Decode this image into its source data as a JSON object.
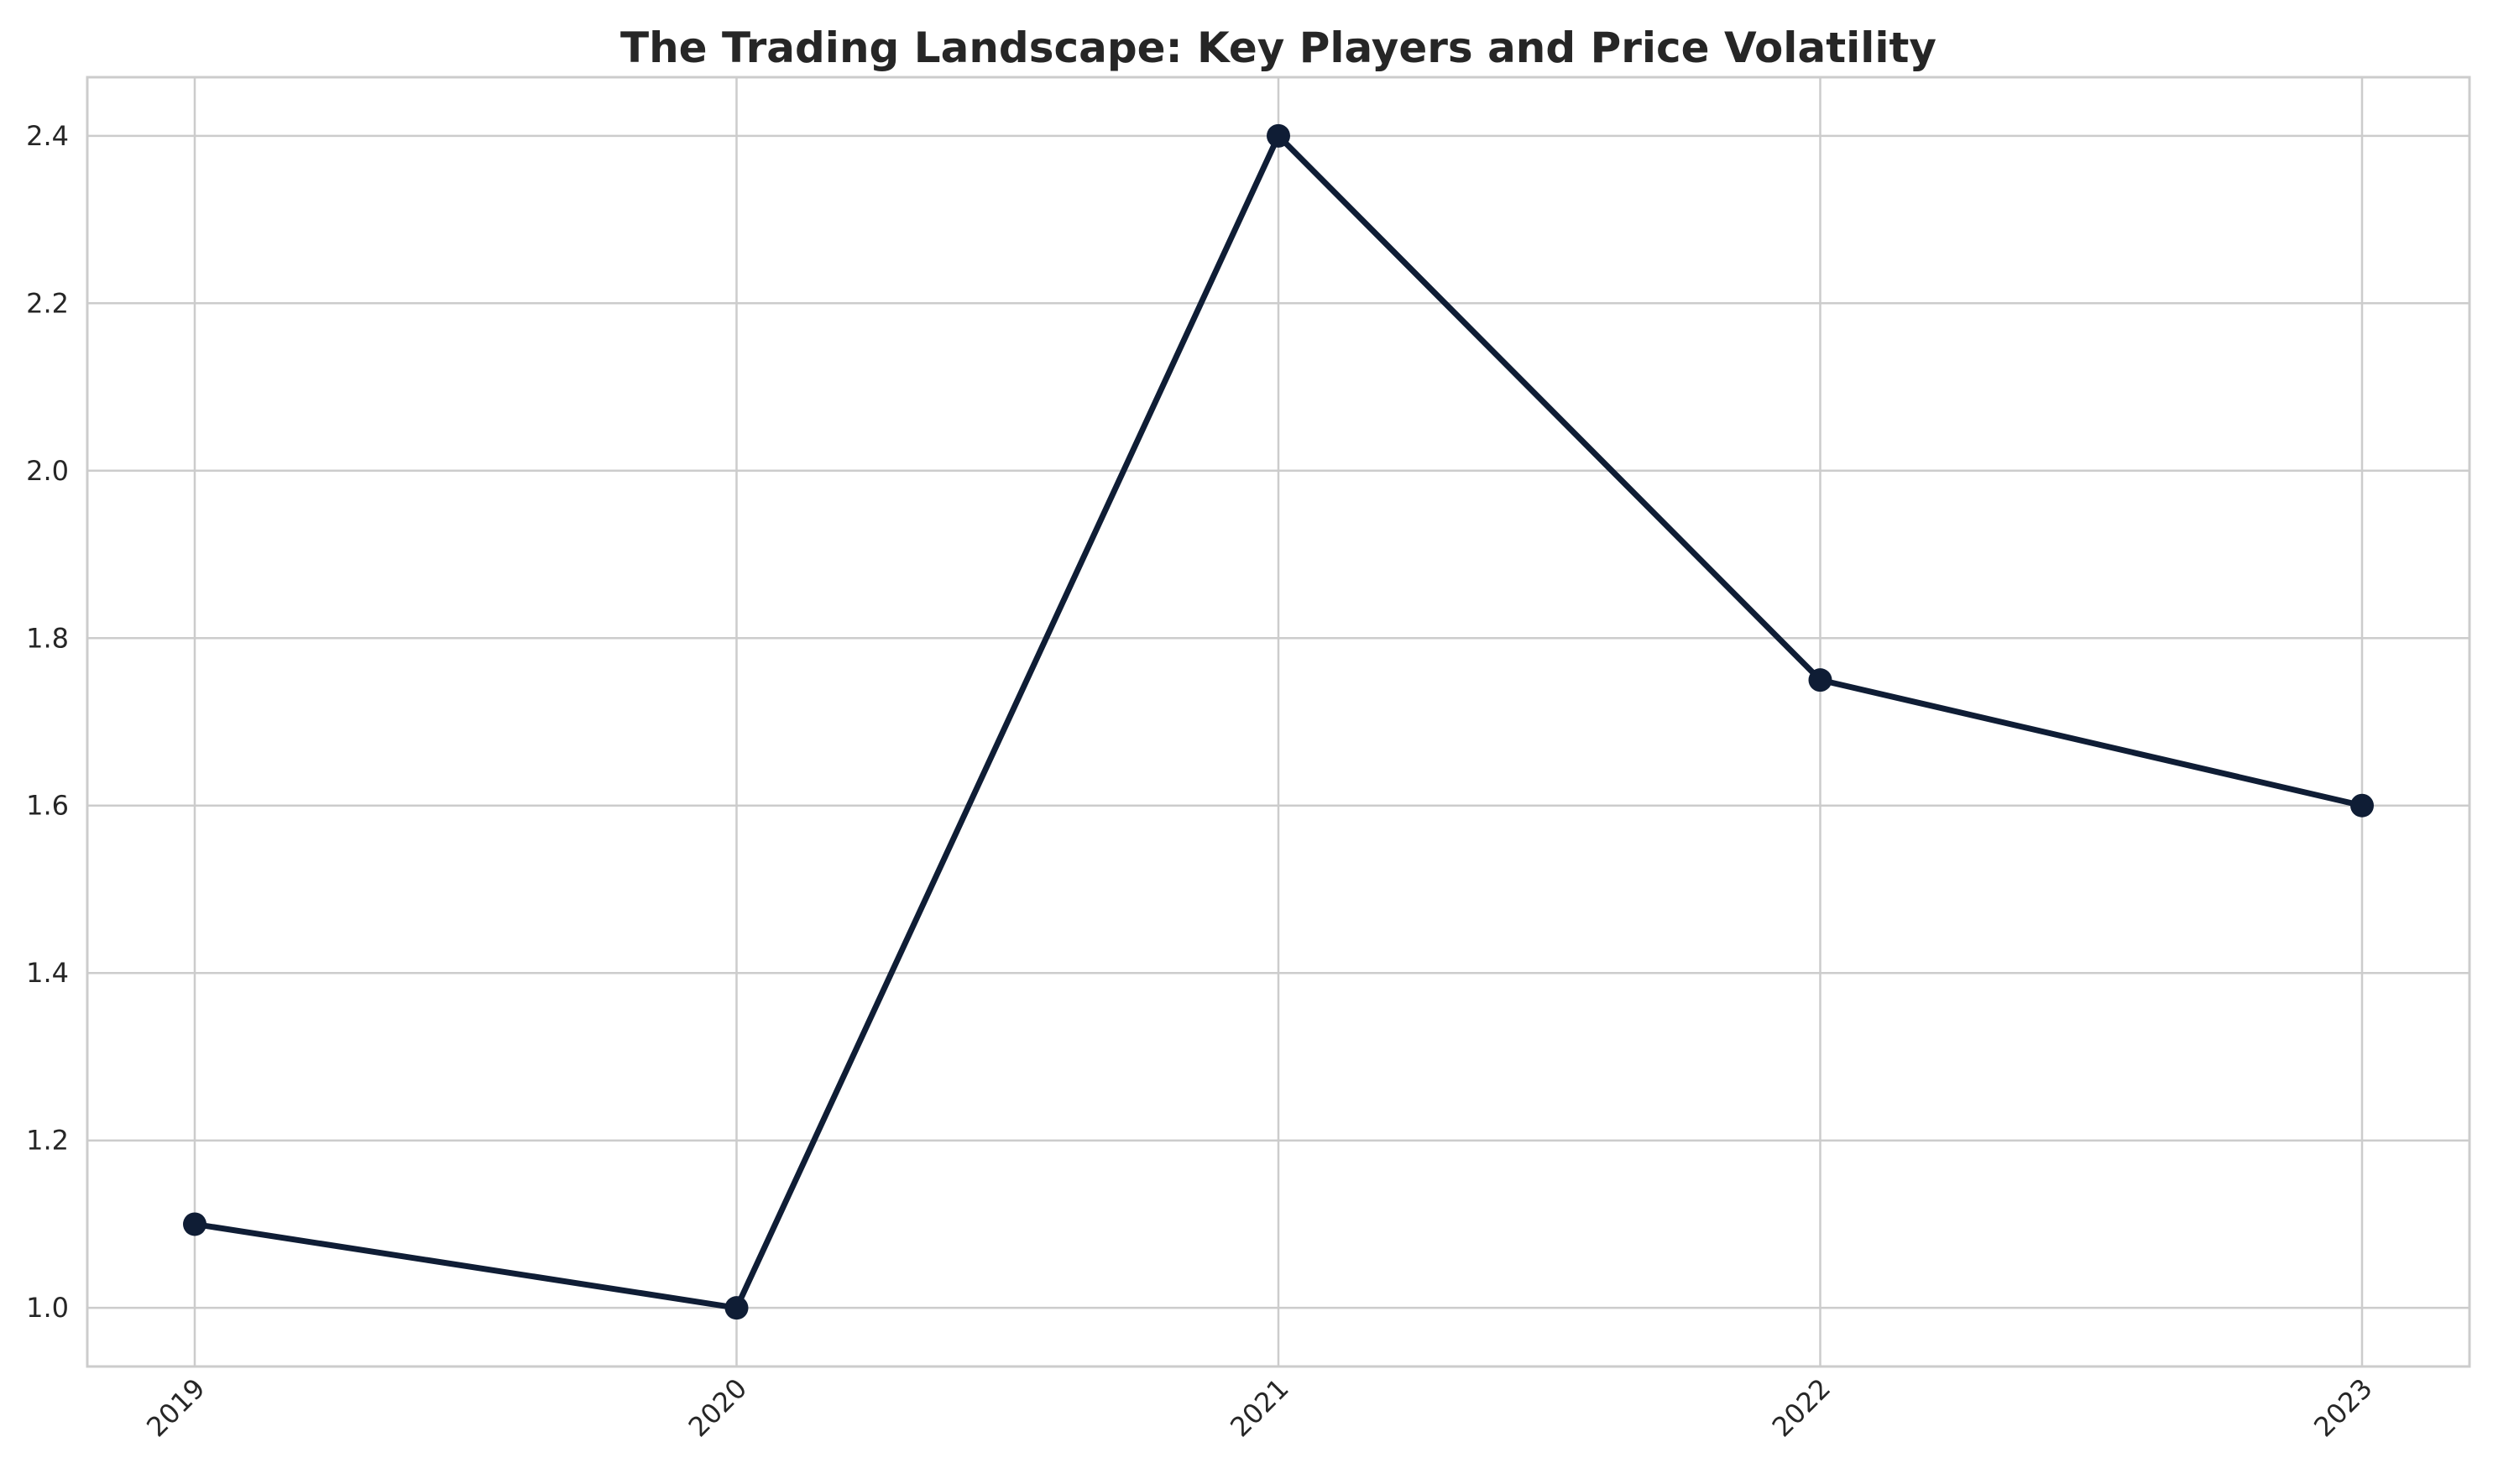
{
  "chart_data": {
    "type": "line",
    "title": "The Trading Landscape: Key Players and Price Volatility",
    "xlabel": "",
    "ylabel": "",
    "x": [
      "2019",
      "2020",
      "2021",
      "2022",
      "2023"
    ],
    "series": [
      {
        "values": [
          1.1,
          1.0,
          2.4,
          1.75,
          1.6
        ]
      }
    ],
    "ylim": [
      0.93,
      2.47
    ],
    "yticks": [
      1.0,
      1.2,
      1.4,
      1.6,
      1.8,
      2.0,
      2.2,
      2.4
    ],
    "ytick_labels": [
      "1.0",
      "1.2",
      "1.4",
      "1.6",
      "1.8",
      "2.0",
      "2.2",
      "2.4"
    ],
    "grid": true,
    "legend": "none",
    "line_color": "#0f1d35",
    "grid_color": "#cccccc",
    "frame_color": "#cccccc"
  }
}
